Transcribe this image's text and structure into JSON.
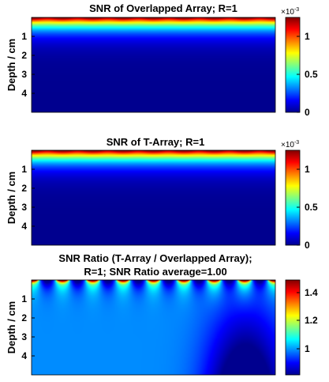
{
  "colors": {
    "colormap": "jet",
    "jet_stops": [
      "#00008f",
      "#0000ff",
      "#0080ff",
      "#00ffff",
      "#80ff80",
      "#ffff00",
      "#ff8000",
      "#ff0000",
      "#800000"
    ],
    "background": "#ffffff",
    "axis": "#000000"
  },
  "chart_data": [
    {
      "type": "heatmap",
      "title": "SNR of Overlapped Array; R=1",
      "ylabel": "Depth / cm",
      "y_ticks": [
        "1",
        "2",
        "3",
        "4"
      ],
      "y_tick_values": [
        1,
        2,
        3,
        4
      ],
      "ylim": [
        -0.5,
        4.5
      ],
      "y_reversed": true,
      "colorbar": {
        "ticks": [
          "0",
          "0.5",
          "1"
        ],
        "tick_values": [
          0,
          0.5,
          1
        ],
        "range": [
          0,
          1.25
        ],
        "exponent_base": "×10",
        "exponent_power": "-3"
      },
      "values_description": "SNR highest at surface, decays rapidly with depth",
      "surface_value": 1.25,
      "num_lobes": 8
    },
    {
      "type": "heatmap",
      "title": "SNR of T-Array; R=1",
      "ylabel": "Depth / cm",
      "y_ticks": [
        "1",
        "2",
        "3",
        "4"
      ],
      "y_tick_values": [
        1,
        2,
        3,
        4
      ],
      "ylim": [
        -0.5,
        4.5
      ],
      "y_reversed": true,
      "colorbar": {
        "ticks": [
          "0",
          "0.5",
          "1"
        ],
        "tick_values": [
          0,
          0.5,
          1
        ],
        "range": [
          0,
          1.25
        ],
        "exponent_base": "×10",
        "exponent_power": "-3"
      },
      "surface_value": 1.25,
      "num_lobes": 8
    },
    {
      "type": "heatmap",
      "title": "SNR Ratio (T-Array / Overlapped Array);",
      "title_line2": "R=1; SNR Ratio average=1.00",
      "ylabel": "Depth / cm",
      "y_ticks": [
        "1",
        "2",
        "3",
        "4"
      ],
      "y_tick_values": [
        1,
        2,
        3,
        4
      ],
      "ylim": [
        -0.5,
        4.5
      ],
      "y_reversed": true,
      "colorbar": {
        "ticks": [
          "1",
          "1.2",
          "1.4"
        ],
        "tick_values": [
          1,
          1.2,
          1.4
        ],
        "range": [
          0.83,
          1.48
        ]
      },
      "num_lobes": 8
    }
  ]
}
